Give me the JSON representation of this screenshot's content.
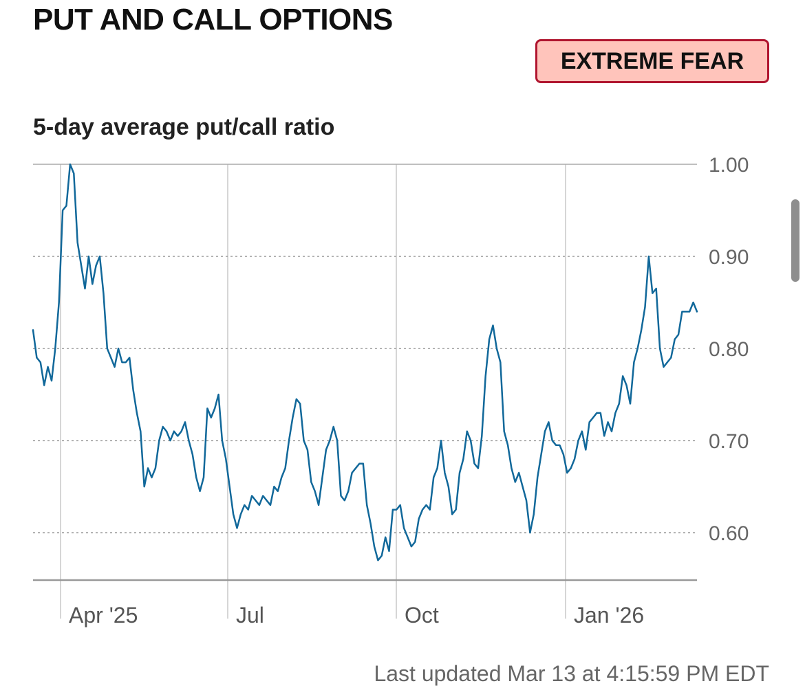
{
  "header": {
    "title": "PUT AND CALL OPTIONS",
    "status_badge": "EXTREME FEAR",
    "subtitle": "5-day average put/call ratio"
  },
  "footer": {
    "last_updated": "Last updated Mar 13 at 4:15:59 PM EDT"
  },
  "colors": {
    "line": "#11689a",
    "badge_bg": "#ffc4bb",
    "badge_border": "#b0152f",
    "grid": "#9a9a9a"
  },
  "chart_data": {
    "type": "line",
    "title": "5-day average put/call ratio",
    "xlabel": "",
    "ylabel": "",
    "ylim": [
      0.55,
      1.0
    ],
    "yticks": [
      "0.60",
      "0.70",
      "0.80",
      "0.90",
      "1.00"
    ],
    "xticks": [
      "Apr '25",
      "Jul",
      "Oct",
      "Jan '26"
    ],
    "grid": true,
    "series": [
      {
        "values": [
          0.82,
          0.79,
          0.785,
          0.76,
          0.78,
          0.765,
          0.8,
          0.85,
          0.95,
          0.955,
          1.0,
          0.99,
          0.915,
          0.89,
          0.865,
          0.9,
          0.87,
          0.89,
          0.9,
          0.86,
          0.8,
          0.79,
          0.78,
          0.8,
          0.785,
          0.785,
          0.79,
          0.755,
          0.73,
          0.71,
          0.65,
          0.67,
          0.66,
          0.67,
          0.7,
          0.715,
          0.71,
          0.7,
          0.71,
          0.705,
          0.71,
          0.72,
          0.7,
          0.685,
          0.66,
          0.645,
          0.66,
          0.735,
          0.725,
          0.735,
          0.75,
          0.7,
          0.68,
          0.65,
          0.62,
          0.605,
          0.62,
          0.63,
          0.625,
          0.64,
          0.635,
          0.63,
          0.64,
          0.635,
          0.63,
          0.65,
          0.645,
          0.66,
          0.67,
          0.7,
          0.725,
          0.745,
          0.74,
          0.7,
          0.69,
          0.655,
          0.645,
          0.63,
          0.66,
          0.69,
          0.7,
          0.715,
          0.7,
          0.64,
          0.635,
          0.645,
          0.665,
          0.67,
          0.675,
          0.675,
          0.63,
          0.61,
          0.585,
          0.57,
          0.575,
          0.595,
          0.58,
          0.625,
          0.625,
          0.63,
          0.605,
          0.595,
          0.585,
          0.59,
          0.615,
          0.625,
          0.63,
          0.625,
          0.66,
          0.67,
          0.7,
          0.665,
          0.65,
          0.62,
          0.625,
          0.665,
          0.68,
          0.71,
          0.7,
          0.675,
          0.67,
          0.705,
          0.77,
          0.81,
          0.825,
          0.8,
          0.785,
          0.71,
          0.695,
          0.67,
          0.655,
          0.665,
          0.65,
          0.635,
          0.6,
          0.62,
          0.66,
          0.685,
          0.71,
          0.72,
          0.7,
          0.695,
          0.695,
          0.685,
          0.665,
          0.67,
          0.68,
          0.7,
          0.71,
          0.69,
          0.72,
          0.725,
          0.73,
          0.73,
          0.705,
          0.72,
          0.71,
          0.73,
          0.74,
          0.77,
          0.76,
          0.74,
          0.785,
          0.8,
          0.82,
          0.845,
          0.9,
          0.86,
          0.865,
          0.8,
          0.78,
          0.785,
          0.79,
          0.81,
          0.815,
          0.84,
          0.84,
          0.84,
          0.85,
          0.84
        ]
      }
    ]
  }
}
